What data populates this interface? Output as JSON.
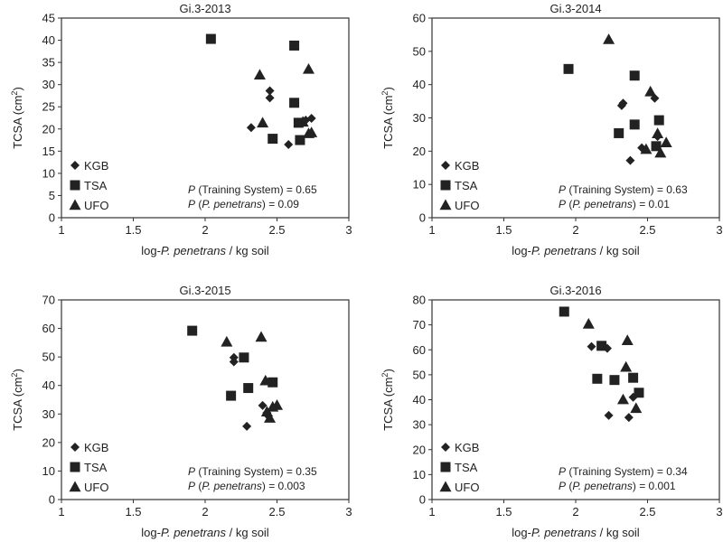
{
  "figure": {
    "marker_color": "#222222",
    "axis_color": "#333333"
  },
  "chart_data": [
    {
      "type": "scatter",
      "title": "Gi.3-2013",
      "xlabel": "log-P. penetrans / kg soil",
      "xlabel_parts": [
        "log-",
        "P. penetrans",
        " / kg soil"
      ],
      "ylabel": "TCSA (cm2)",
      "ylabel_parts": [
        "TCSA (cm",
        "2",
        ")"
      ],
      "xlim": [
        1,
        3
      ],
      "ylim": [
        0,
        45
      ],
      "xticks": [
        1,
        1.5,
        2,
        2.5,
        3
      ],
      "xtick_labels": [
        "1",
        "1.5",
        "2",
        "2.5",
        "3"
      ],
      "yticks": [
        0,
        5,
        10,
        15,
        20,
        25,
        30,
        35,
        40,
        45
      ],
      "ytick_labels": [
        "0",
        "5",
        "10",
        "15",
        "20",
        "25",
        "30",
        "35",
        "40",
        "45"
      ],
      "grid": false,
      "legend_position": "bottom-left",
      "series": [
        {
          "name": "KGB",
          "marker": "diamond",
          "points": [
            [
              2.32,
              20.3
            ],
            [
              2.45,
              28.6
            ],
            [
              2.45,
              27.0
            ],
            [
              2.58,
              16.5
            ],
            [
              2.7,
              22.0
            ],
            [
              2.74,
              22.4
            ]
          ]
        },
        {
          "name": "TSA",
          "marker": "square",
          "points": [
            [
              2.04,
              40.3
            ],
            [
              2.62,
              38.8
            ],
            [
              2.62,
              25.9
            ],
            [
              2.65,
              21.4
            ],
            [
              2.47,
              17.8
            ],
            [
              2.66,
              17.5
            ]
          ]
        },
        {
          "name": "UFO",
          "marker": "triangle",
          "points": [
            [
              2.38,
              32.2
            ],
            [
              2.72,
              33.5
            ],
            [
              2.4,
              21.4
            ],
            [
              2.68,
              21.6
            ],
            [
              2.72,
              19.0
            ],
            [
              2.74,
              19.2
            ]
          ]
        }
      ],
      "annotations": [
        {
          "prefix": "P",
          "text": " (Training System) = 0.65"
        },
        {
          "prefix": "P",
          "text_parts": [
            " (",
            "P. penetrans",
            ") = 0.09"
          ]
        }
      ]
    },
    {
      "type": "scatter",
      "title": "Gi.3-2014",
      "xlabel": "log-P. penetrans / kg soil",
      "xlabel_parts": [
        "log-",
        "P. penetrans",
        " / kg soil"
      ],
      "ylabel": "TCSA (cm2)",
      "ylabel_parts": [
        "TCSA (cm",
        "2",
        ")"
      ],
      "xlim": [
        1,
        3
      ],
      "ylim": [
        0,
        60
      ],
      "xticks": [
        1,
        1.5,
        2,
        2.5,
        3
      ],
      "xtick_labels": [
        "1",
        "1.5",
        "2",
        "2.5",
        "3"
      ],
      "yticks": [
        0,
        10,
        20,
        30,
        40,
        50,
        60
      ],
      "ytick_labels": [
        "0",
        "10",
        "20",
        "30",
        "40",
        "50",
        "60"
      ],
      "grid": false,
      "legend_position": "bottom-left",
      "series": [
        {
          "name": "KGB",
          "marker": "diamond",
          "points": [
            [
              2.32,
              33.7
            ],
            [
              2.33,
              34.4
            ],
            [
              2.55,
              35.9
            ],
            [
              2.57,
              24.4
            ],
            [
              2.46,
              21.0
            ],
            [
              2.38,
              17.2
            ]
          ]
        },
        {
          "name": "TSA",
          "marker": "square",
          "points": [
            [
              1.95,
              44.7
            ],
            [
              2.41,
              42.7
            ],
            [
              2.58,
              29.3
            ],
            [
              2.41,
              28.0
            ],
            [
              2.3,
              25.4
            ],
            [
              2.56,
              21.5
            ]
          ]
        },
        {
          "name": "UFO",
          "marker": "triangle",
          "points": [
            [
              2.23,
              53.6
            ],
            [
              2.52,
              37.9
            ],
            [
              2.57,
              25.3
            ],
            [
              2.63,
              22.6
            ],
            [
              2.49,
              20.6
            ],
            [
              2.59,
              19.5
            ]
          ]
        }
      ],
      "annotations": [
        {
          "prefix": "P",
          "text": " (Training System) = 0.63"
        },
        {
          "prefix": "P",
          "text_parts": [
            " (",
            "P. penetrans",
            ") = 0.01"
          ]
        }
      ]
    },
    {
      "type": "scatter",
      "title": "Gi.3-2015",
      "xlabel": "log-P. penetrans / kg soil",
      "xlabel_parts": [
        "log-",
        "P. penetrans",
        " / kg soil"
      ],
      "ylabel": "TCSA (cm2)",
      "ylabel_parts": [
        "TCSA (cm",
        "2",
        ")"
      ],
      "xlim": [
        1,
        3
      ],
      "ylim": [
        0,
        70
      ],
      "xticks": [
        1,
        1.5,
        2,
        2.5,
        3
      ],
      "xtick_labels": [
        "1",
        "1.5",
        "2",
        "2.5",
        "3"
      ],
      "yticks": [
        0,
        10,
        20,
        30,
        40,
        50,
        60,
        70
      ],
      "ytick_labels": [
        "0",
        "10",
        "20",
        "30",
        "40",
        "50",
        "60",
        "70"
      ],
      "grid": false,
      "legend_position": "bottom-left",
      "series": [
        {
          "name": "KGB",
          "marker": "diamond",
          "points": [
            [
              2.2,
              49.8
            ],
            [
              2.2,
              48.3
            ],
            [
              2.4,
              33.0
            ],
            [
              2.43,
              30.4
            ],
            [
              2.44,
              29.3
            ],
            [
              2.29,
              25.7
            ]
          ]
        },
        {
          "name": "TSA",
          "marker": "square",
          "points": [
            [
              1.91,
              59.2
            ],
            [
              2.27,
              49.8
            ],
            [
              2.47,
              41.1
            ],
            [
              2.3,
              39.1
            ],
            [
              2.18,
              36.4
            ]
          ]
        },
        {
          "name": "UFO",
          "marker": "triangle",
          "points": [
            [
              2.15,
              55.3
            ],
            [
              2.39,
              57.0
            ],
            [
              2.42,
              41.7
            ],
            [
              2.5,
              33.1
            ],
            [
              2.47,
              32.5
            ],
            [
              2.43,
              30.8
            ],
            [
              2.45,
              28.6
            ]
          ]
        }
      ],
      "annotations": [
        {
          "prefix": "P",
          "text": " (Training System) = 0.35"
        },
        {
          "prefix": "P",
          "text_parts": [
            " (",
            "P. penetrans",
            ") = 0.003"
          ]
        }
      ]
    },
    {
      "type": "scatter",
      "title": "Gi.3-2016",
      "xlabel": "log-P. penetrans / kg soil",
      "xlabel_parts": [
        "log-",
        "P. penetrans",
        " / kg soil"
      ],
      "ylabel": "TCSA (cm2)",
      "ylabel_parts": [
        "TCSA (cm",
        "2",
        ")"
      ],
      "xlim": [
        1,
        3
      ],
      "ylim": [
        0,
        80
      ],
      "xticks": [
        1,
        1.5,
        2,
        2.5,
        3
      ],
      "xtick_labels": [
        "1",
        "1.5",
        "2",
        "2.5",
        "3"
      ],
      "yticks": [
        0,
        10,
        20,
        30,
        40,
        50,
        60,
        70,
        80
      ],
      "ytick_labels": [
        "0",
        "10",
        "20",
        "30",
        "40",
        "50",
        "60",
        "70",
        "80"
      ],
      "grid": false,
      "legend_position": "bottom-left",
      "series": [
        {
          "name": "KGB",
          "marker": "diamond",
          "points": [
            [
              2.11,
              61.3
            ],
            [
              2.22,
              60.6
            ],
            [
              2.4,
              41.0
            ],
            [
              2.23,
              33.7
            ],
            [
              2.37,
              32.9
            ]
          ]
        },
        {
          "name": "TSA",
          "marker": "square",
          "points": [
            [
              1.92,
              75.3
            ],
            [
              2.18,
              61.6
            ],
            [
              2.15,
              48.4
            ],
            [
              2.27,
              47.9
            ],
            [
              2.4,
              48.8
            ],
            [
              2.44,
              42.8
            ]
          ]
        },
        {
          "name": "UFO",
          "marker": "triangle",
          "points": [
            [
              2.09,
              70.4
            ],
            [
              2.36,
              63.8
            ],
            [
              2.35,
              53.1
            ],
            [
              2.33,
              40.1
            ],
            [
              2.42,
              36.6
            ]
          ]
        }
      ],
      "annotations": [
        {
          "prefix": "P",
          "text": " (Training System) = 0.34"
        },
        {
          "prefix": "P",
          "text_parts": [
            " (",
            "P. penetrans",
            ") = 0.001"
          ]
        }
      ]
    }
  ]
}
